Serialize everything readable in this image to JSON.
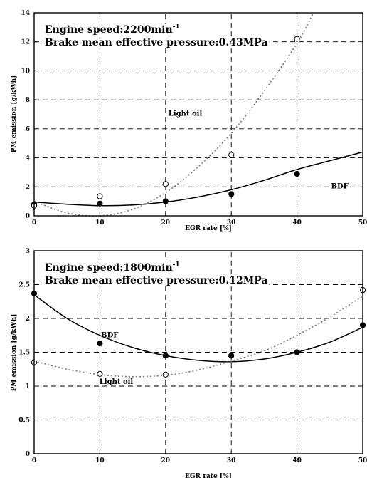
{
  "chart_data": [
    {
      "type": "scatter",
      "title": "Engine speed:2200min",
      "title_superscript": "-1",
      "subtitle": "Brake mean effective pressure:0.43MPa",
      "xlabel": "EGR rate  [%]",
      "ylabel": "PM emission  [g/kWh]",
      "xlim": [
        0,
        50
      ],
      "ylim": [
        0,
        14
      ],
      "xticks": [
        "0",
        "10",
        "20",
        "30",
        "40",
        "50"
      ],
      "yticks": [
        "0",
        "2",
        "4",
        "6",
        "8",
        "10",
        "12",
        "14"
      ],
      "grid": true,
      "series": [
        {
          "name": "BDF",
          "marker": "filled-circle",
          "x": [
            0,
            10,
            20,
            30,
            40
          ],
          "y": [
            0.8,
            0.85,
            1.0,
            1.5,
            2.9
          ],
          "fit": "solid",
          "fit_curve": {
            "x": [
              0,
              5,
              10,
              15,
              20,
              25,
              30,
              35,
              40,
              45,
              50
            ],
            "y": [
              0.95,
              0.8,
              0.7,
              0.75,
              0.95,
              1.3,
              1.8,
              2.45,
              3.2,
              3.8,
              4.4
            ]
          }
        },
        {
          "name": "Light oil",
          "marker": "open-circle",
          "x": [
            0,
            10,
            20,
            30,
            40
          ],
          "y": [
            0.7,
            1.35,
            2.2,
            4.2,
            12.2
          ],
          "fit": "dotted",
          "fit_curve": {
            "x": [
              0,
              5,
              10,
              15,
              20,
              25,
              30,
              35,
              40,
              42.5
            ],
            "y": [
              1.0,
              0.2,
              0.0,
              0.45,
              1.6,
              3.4,
              5.7,
              8.6,
              11.9,
              14.0
            ]
          }
        }
      ],
      "annotations": [
        {
          "text": "Light oil",
          "x": 23,
          "y": 6.9
        },
        {
          "text": "BDF",
          "x": 46.5,
          "y": 1.9
        }
      ]
    },
    {
      "type": "scatter",
      "title": "Engine speed:1800min",
      "title_superscript": "-1",
      "subtitle": "Brake mean effective pressure:0.12MPa",
      "xlabel": "EGR rate  [%]",
      "ylabel": "PM emission  [g/kWh]",
      "xlim": [
        0,
        50
      ],
      "ylim": [
        0,
        3
      ],
      "xticks": [
        "0",
        "10",
        "20",
        "30",
        "40",
        "50"
      ],
      "yticks": [
        "0",
        "0.5",
        "1",
        "1.5",
        "2",
        "2.5",
        "3"
      ],
      "grid": true,
      "series": [
        {
          "name": "BDF",
          "marker": "filled-circle",
          "x": [
            0,
            10,
            20,
            30,
            40,
            50
          ],
          "y": [
            2.37,
            1.63,
            1.45,
            1.45,
            1.5,
            1.9
          ],
          "fit": "solid",
          "fit_curve": {
            "x": [
              0,
              5,
              10,
              15,
              20,
              25,
              30,
              35,
              40,
              45,
              50
            ],
            "y": [
              2.35,
              2.0,
              1.75,
              1.57,
              1.45,
              1.38,
              1.36,
              1.4,
              1.5,
              1.65,
              1.87
            ]
          }
        },
        {
          "name": "Light oil",
          "marker": "open-circle",
          "x": [
            0,
            10,
            20,
            50
          ],
          "y": [
            1.35,
            1.18,
            1.17,
            2.42
          ],
          "fit": "dotted",
          "fit_curve": {
            "x": [
              0,
              5,
              10,
              15,
              20,
              25,
              30,
              35,
              40,
              45,
              50
            ],
            "y": [
              1.37,
              1.25,
              1.17,
              1.14,
              1.16,
              1.24,
              1.37,
              1.52,
              1.75,
              2.02,
              2.33
            ]
          }
        }
      ],
      "annotations": [
        {
          "text": "BDF",
          "x": 11.5,
          "y": 1.72
        },
        {
          "text": "Light oil",
          "x": 12.5,
          "y": 1.03
        }
      ]
    }
  ]
}
